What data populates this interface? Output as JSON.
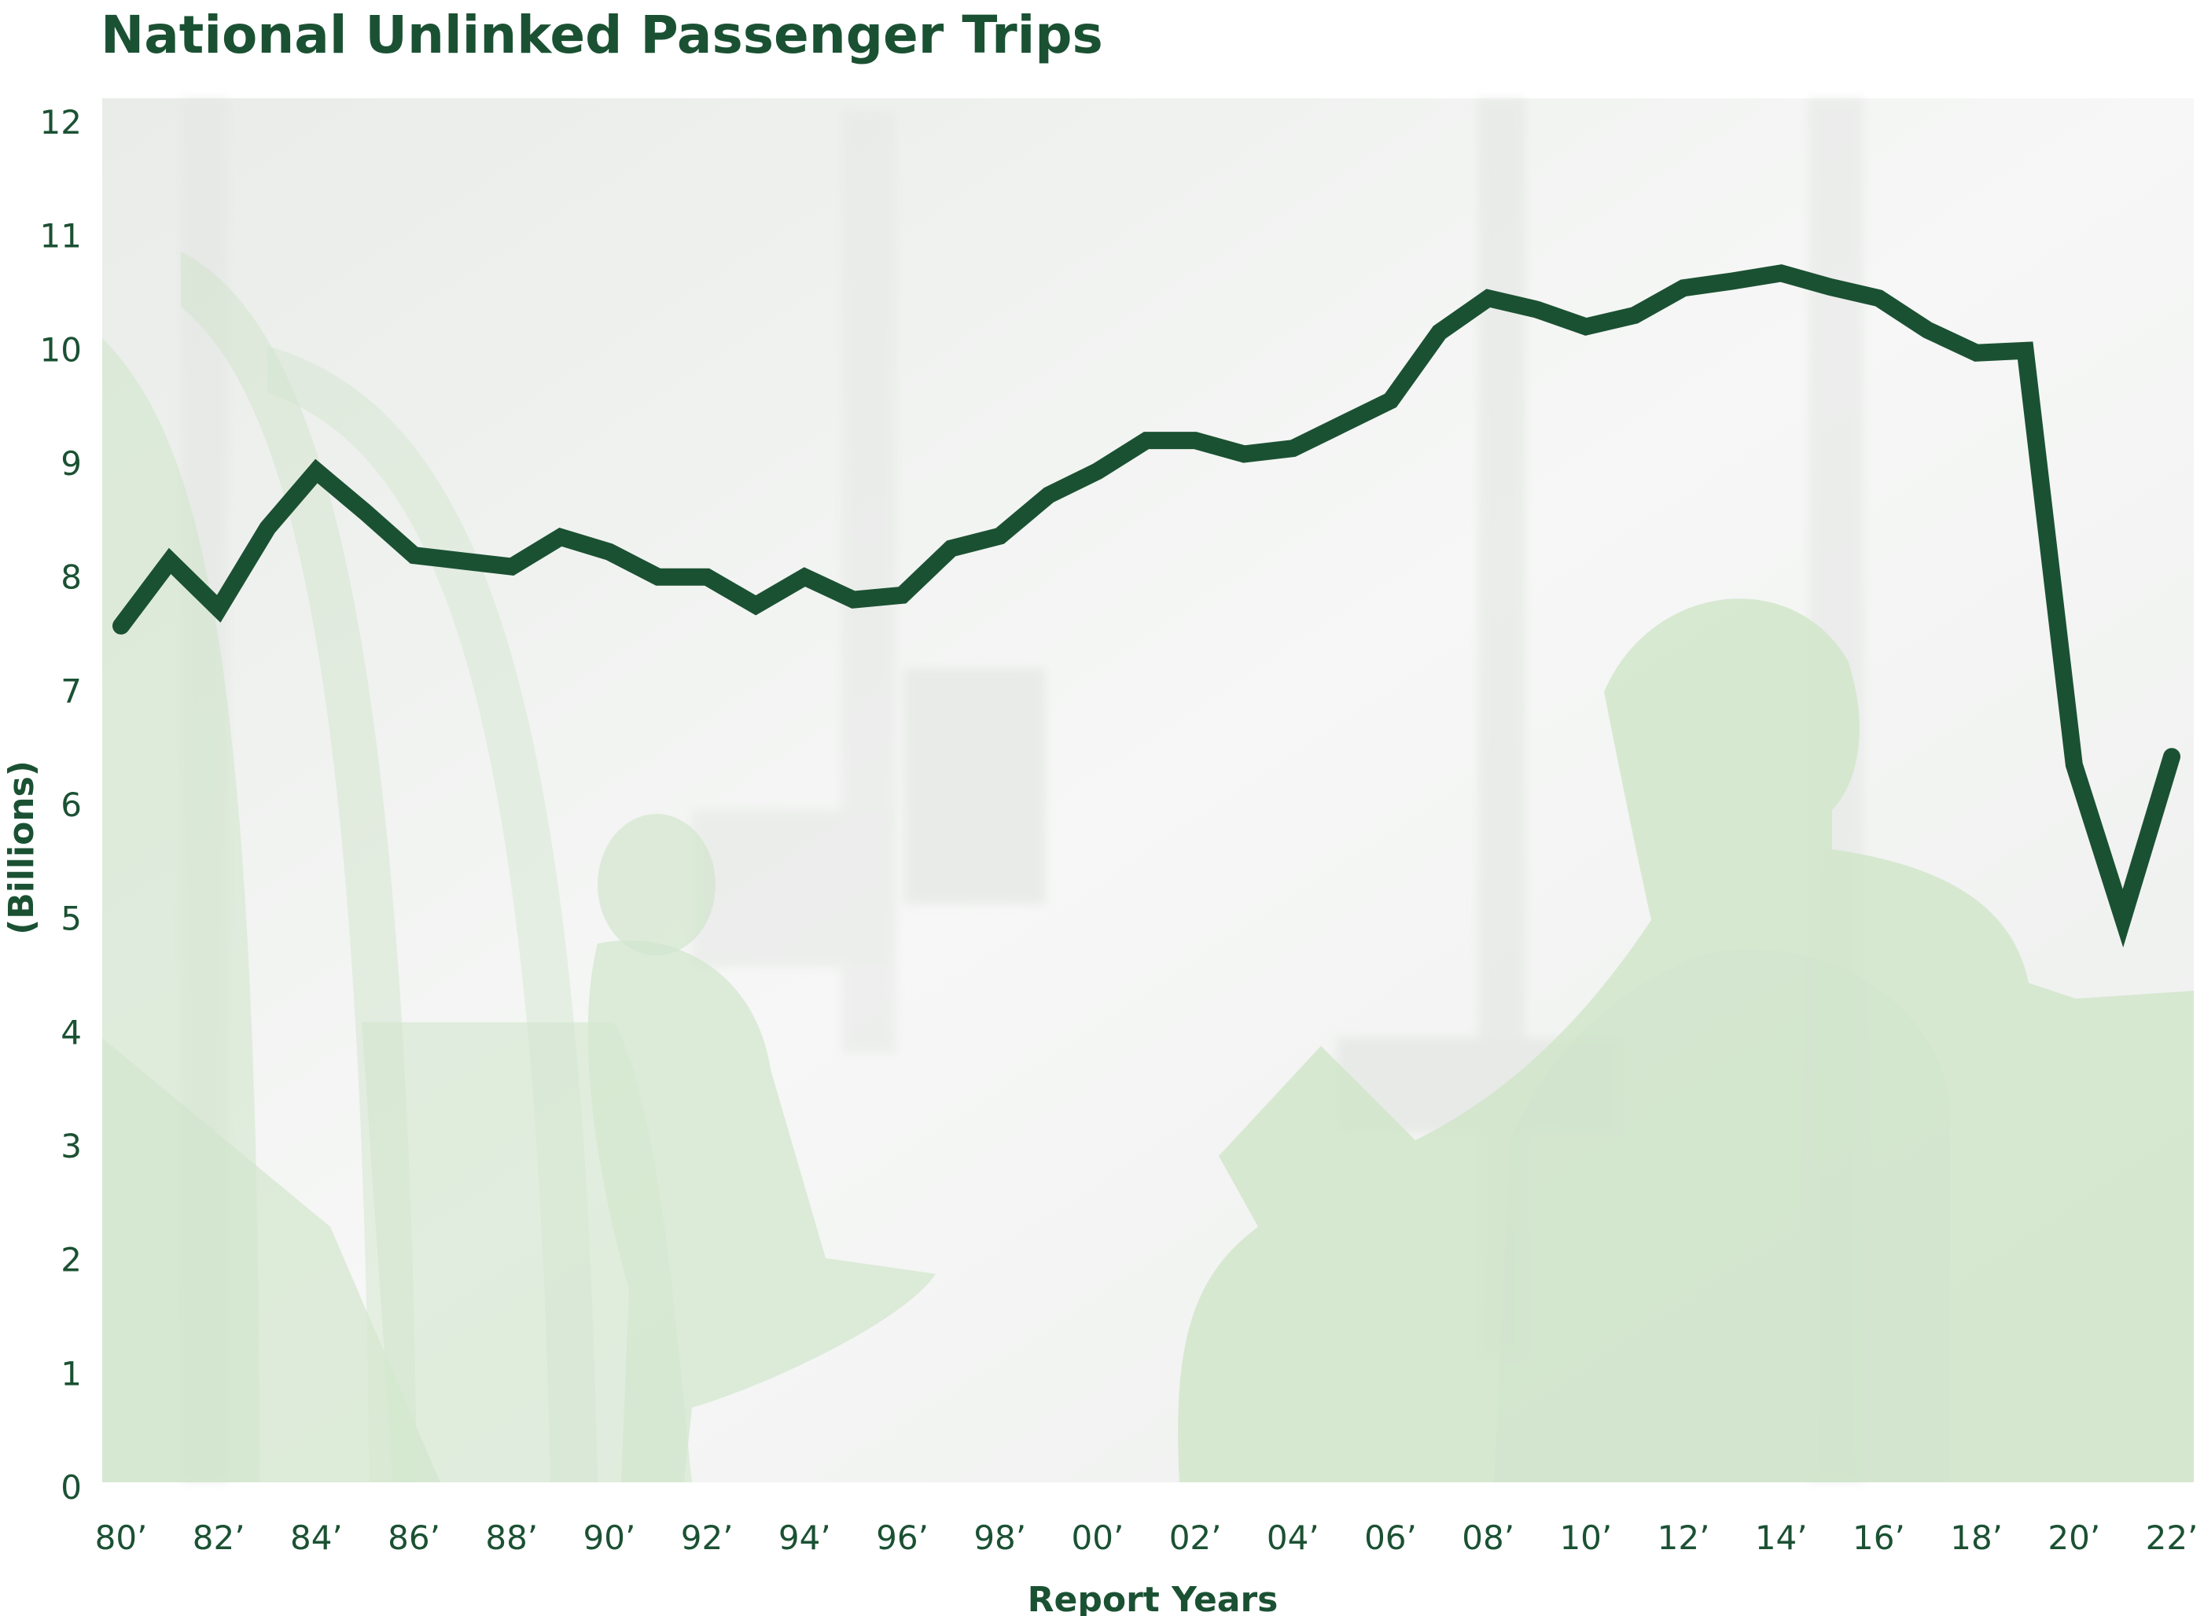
{
  "chart_data": {
    "type": "line",
    "title": "National Unlinked Passenger Trips",
    "xlabel": "Report Years",
    "ylabel": "(Billions)",
    "ylim": [
      0,
      12
    ],
    "yticks": [
      0,
      1,
      2,
      3,
      4,
      5,
      6,
      7,
      8,
      9,
      10,
      11,
      12
    ],
    "xlim": [
      1980,
      2022
    ],
    "x_tick_labels": [
      "80’",
      "82’",
      "84’",
      "86’",
      "88’",
      "90’",
      "92’",
      "94’",
      "96’",
      "98’",
      "00’",
      "02’",
      "04’",
      "06’",
      "08’",
      "10’",
      "12’",
      "14’",
      "16’",
      "18’",
      "20’",
      "22’"
    ],
    "grid": false,
    "legend": "none",
    "series": [
      {
        "color": "#1b5133",
        "x": [
          1980,
          1981,
          1982,
          1983,
          1984,
          1985,
          1986,
          1987,
          1988,
          1989,
          1990,
          1991,
          1992,
          1993,
          1994,
          1995,
          1996,
          1997,
          1998,
          1999,
          2000,
          2001,
          2002,
          2003,
          2004,
          2005,
          2006,
          2007,
          2008,
          2009,
          2010,
          2011,
          2012,
          2013,
          2014,
          2015,
          2016,
          2017,
          2018,
          2019,
          2020,
          2021,
          2022
        ],
        "values": [
          7.57,
          8.14,
          7.72,
          8.43,
          8.93,
          8.57,
          8.19,
          8.14,
          8.09,
          8.35,
          8.22,
          8.0,
          8.0,
          7.75,
          8.0,
          7.8,
          7.84,
          8.25,
          8.36,
          8.72,
          8.93,
          9.2,
          9.2,
          9.08,
          9.13,
          9.34,
          9.55,
          10.15,
          10.45,
          10.35,
          10.2,
          10.3,
          10.54,
          10.6,
          10.67,
          10.55,
          10.45,
          10.17,
          9.97,
          9.99,
          6.35,
          5.0,
          6.42
        ]
      }
    ]
  },
  "colors": {
    "line": "#1b5133",
    "text": "#1b5133",
    "photo_green": "#cfe4c9",
    "photo_bg": "#f1f2f1"
  },
  "background": {
    "icon": "transit-passenger-photo"
  }
}
